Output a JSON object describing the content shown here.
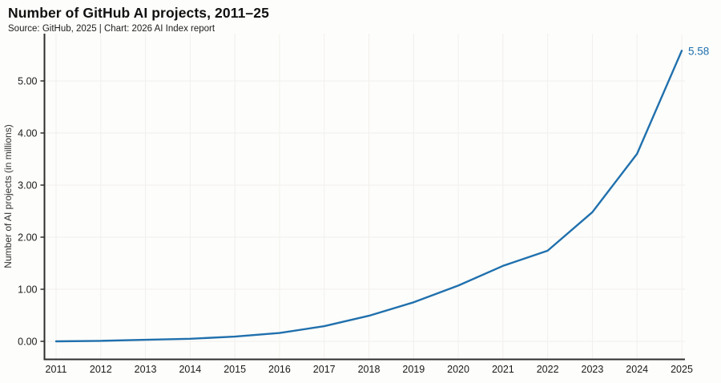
{
  "header": {
    "title": "Number of GitHub AI projects, 2011–25",
    "subtitle": "Source: GitHub, 2025 | Chart: 2026 AI Index report"
  },
  "chart_data": {
    "type": "line",
    "title": "Number of GitHub AI projects, 2011–25",
    "subtitle": "Source: GitHub, 2025 | Chart: 2026 AI Index report",
    "x": [
      2011,
      2012,
      2013,
      2014,
      2015,
      2016,
      2017,
      2018,
      2019,
      2020,
      2021,
      2022,
      2023,
      2024,
      2025
    ],
    "series": [
      {
        "name": "GitHub AI projects (millions)",
        "values": [
          0.0,
          0.01,
          0.03,
          0.05,
          0.09,
          0.16,
          0.29,
          0.49,
          0.75,
          1.07,
          1.45,
          1.74,
          2.48,
          3.6,
          5.58
        ]
      }
    ],
    "end_label": "5.58",
    "xlabel": "",
    "ylabel": "Number of AI projects (in millions)",
    "ylim": [
      0,
      5.8
    ],
    "yticks": [
      0,
      1,
      2,
      3,
      4,
      5
    ],
    "ytick_labels": [
      "0.00",
      "1.00",
      "2.00",
      "3.00",
      "4.00",
      "5.00"
    ],
    "grid": true,
    "legend_position": "none",
    "colors": {
      "line": "#2070ad",
      "annotation": "#2070ad",
      "grid": "#f1f0ed",
      "axis": "#2e2e2e",
      "tick_text": "#1a1a1a",
      "axis_label_text": "#333333"
    }
  }
}
